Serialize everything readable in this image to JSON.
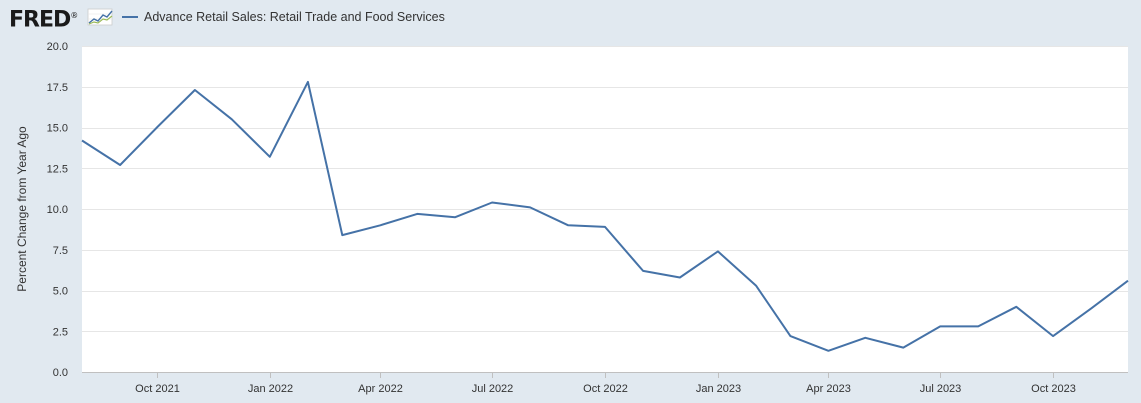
{
  "header": {
    "logo_text": "FRED",
    "logo_mark": "®",
    "logo_icon": "line-chart-icon"
  },
  "chart_data": {
    "type": "line",
    "title": "",
    "xlabel": "",
    "ylabel": "Percent Change from Year Ago",
    "ylim": [
      0,
      20
    ],
    "yticks": [
      "0.0",
      "2.5",
      "5.0",
      "7.5",
      "10.0",
      "12.5",
      "15.0",
      "17.5",
      "20.0"
    ],
    "x_tick_labels": [
      "Oct 2021",
      "Jan 2022",
      "Apr 2022",
      "Jul 2022",
      "Oct 2022",
      "Jan 2023",
      "Apr 2023",
      "Jul 2023",
      "Oct 2023"
    ],
    "x_tick_dates": [
      "2021-10-01",
      "2022-01-01",
      "2022-04-01",
      "2022-07-01",
      "2022-10-01",
      "2023-01-01",
      "2023-04-01",
      "2023-07-01",
      "2023-10-01"
    ],
    "xlim": [
      "2021-08-01",
      "2023-12-01"
    ],
    "grid": true,
    "legend_position": "top-left",
    "series": [
      {
        "name": "Advance Retail Sales: Retail Trade and Food Services",
        "color": "#4572a7",
        "x": [
          "2021-08-01",
          "2021-09-01",
          "2021-10-01",
          "2021-11-01",
          "2021-12-01",
          "2022-01-01",
          "2022-02-01",
          "2022-03-01",
          "2022-04-01",
          "2022-05-01",
          "2022-06-01",
          "2022-07-01",
          "2022-08-01",
          "2022-09-01",
          "2022-10-01",
          "2022-11-01",
          "2022-12-01",
          "2023-01-01",
          "2023-02-01",
          "2023-03-01",
          "2023-04-01",
          "2023-05-01",
          "2023-06-01",
          "2023-07-01",
          "2023-08-01",
          "2023-09-01",
          "2023-10-01",
          "2023-11-01",
          "2023-12-01"
        ],
        "values": [
          14.2,
          12.7,
          15.0,
          17.3,
          15.5,
          13.2,
          17.8,
          8.4,
          9.0,
          9.7,
          9.5,
          10.4,
          10.1,
          9.0,
          8.9,
          6.2,
          5.8,
          7.4,
          5.3,
          2.2,
          1.3,
          2.1,
          1.5,
          2.8,
          2.8,
          4.0,
          2.2,
          3.9,
          5.6
        ]
      }
    ]
  }
}
